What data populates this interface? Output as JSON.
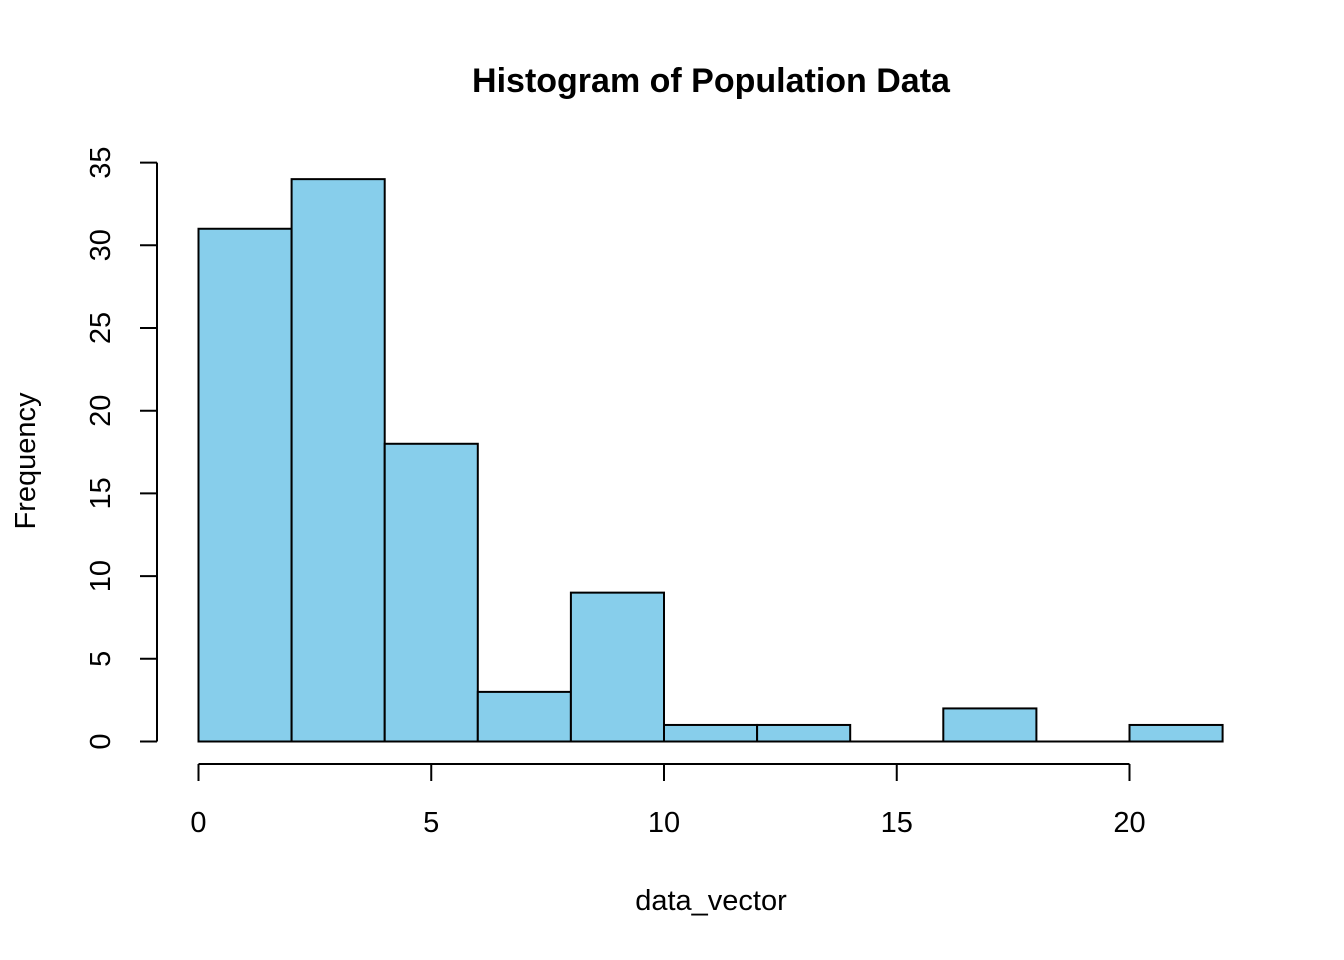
{
  "chart_data": {
    "type": "bar",
    "subtype": "histogram",
    "title": "Histogram of Population Data",
    "xlabel": "data_vector",
    "ylabel": "Frequency",
    "bins": [
      {
        "x0": 0,
        "x1": 2,
        "count": 31
      },
      {
        "x0": 2,
        "x1": 4,
        "count": 34
      },
      {
        "x0": 4,
        "x1": 6,
        "count": 18
      },
      {
        "x0": 6,
        "x1": 8,
        "count": 3
      },
      {
        "x0": 8,
        "x1": 10,
        "count": 9
      },
      {
        "x0": 10,
        "x1": 12,
        "count": 1
      },
      {
        "x0": 12,
        "x1": 14,
        "count": 1
      },
      {
        "x0": 14,
        "x1": 16,
        "count": 0
      },
      {
        "x0": 16,
        "x1": 18,
        "count": 2
      },
      {
        "x0": 18,
        "x1": 20,
        "count": 0
      },
      {
        "x0": 20,
        "x1": 22,
        "count": 1
      }
    ],
    "xlim": [
      0,
      22
    ],
    "ylim": [
      0,
      35
    ],
    "x_ticks": [
      0,
      5,
      10,
      15,
      20
    ],
    "y_ticks": [
      0,
      5,
      10,
      15,
      20,
      25,
      30,
      35
    ],
    "bar_color": "#87CEEB",
    "grid": false,
    "legend": "none"
  }
}
